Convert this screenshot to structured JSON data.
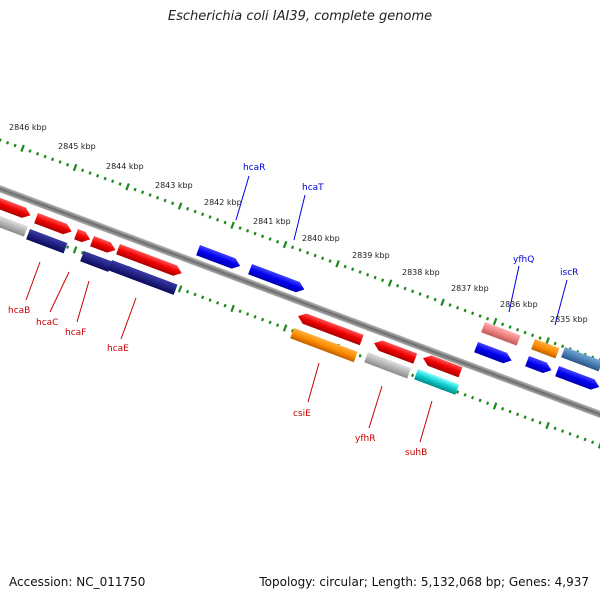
{
  "title": "Escherichia coli IAI39, complete genome",
  "footer": {
    "accession": "Accession: NC_011750",
    "summary": "Topology: circular; Length: 5,132,068 bp; Genes: 4,937"
  },
  "scale_labels": [
    "2846 kbp",
    "2845 kbp",
    "2844 kbp",
    "2843 kbp",
    "2842 kbp",
    "2841 kbp",
    "2840 kbp",
    "2839 kbp",
    "2838 kbp",
    "2837 kbp",
    "2836 kbp",
    "2835 kbp"
  ],
  "genes_upper": [
    {
      "label": "hcaR",
      "color": "#0000dd"
    },
    {
      "label": "hcaT",
      "color": "#0000dd"
    },
    {
      "label": "yfhQ",
      "color": "#0000dd"
    },
    {
      "label": "iscR",
      "color": "#0000dd"
    }
  ],
  "genes_lower": [
    {
      "label": "hcaB",
      "color": "#cc0000"
    },
    {
      "label": "hcaC",
      "color": "#cc0000"
    },
    {
      "label": "hcaF",
      "color": "#cc0000"
    },
    {
      "label": "hcaE",
      "color": "#cc0000"
    },
    {
      "label": "csiE",
      "color": "#cc0000"
    },
    {
      "label": "yfhR",
      "color": "#cc0000"
    },
    {
      "label": "suhB",
      "color": "#cc0000"
    }
  ],
  "colors": {
    "backbone": "#808080",
    "tick": "#1a8a1a",
    "red": "#ee1111",
    "blue": "#1111ee",
    "navy": "#14148a",
    "grey": "#b8b8b8",
    "orange": "#ff8c00",
    "pink": "#ee8888",
    "cyan": "#11cccc",
    "steel": "#4a7fb5"
  }
}
